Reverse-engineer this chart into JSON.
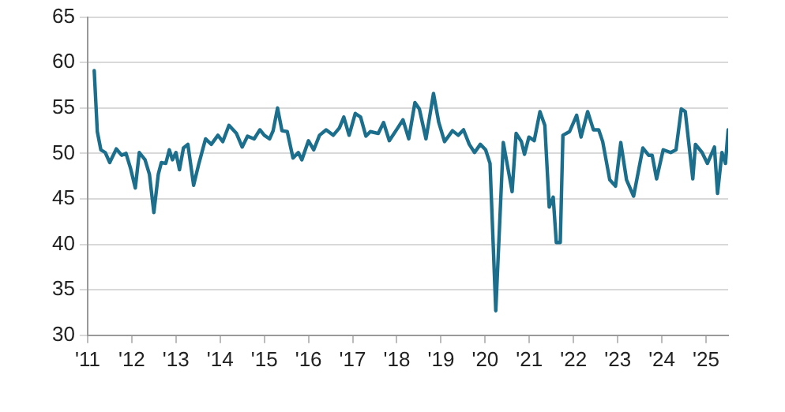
{
  "chart_data": {
    "type": "line",
    "color": "#1b6f8c",
    "grid": "y",
    "legend": false,
    "marker": "none",
    "line_style": "solid",
    "x": [
      2011.15,
      2011.22,
      2011.3,
      2011.4,
      2011.5,
      2011.65,
      2011.77,
      2011.87,
      2011.97,
      2012.08,
      2012.17,
      2012.3,
      2012.4,
      2012.5,
      2012.6,
      2012.67,
      2012.77,
      2012.85,
      2012.92,
      2013.0,
      2013.08,
      2013.17,
      2013.27,
      2013.4,
      2013.52,
      2013.67,
      2013.8,
      2013.95,
      2014.06,
      2014.2,
      2014.37,
      2014.5,
      2014.62,
      2014.77,
      2014.9,
      2015.0,
      2015.12,
      2015.2,
      2015.3,
      2015.4,
      2015.52,
      2015.65,
      2015.77,
      2015.85,
      2016.0,
      2016.12,
      2016.25,
      2016.4,
      2016.56,
      2016.7,
      2016.8,
      2016.92,
      2017.06,
      2017.18,
      2017.3,
      2017.4,
      2017.58,
      2017.7,
      2017.83,
      2018.02,
      2018.14,
      2018.27,
      2018.41,
      2018.51,
      2018.66,
      2018.83,
      2018.95,
      2019.08,
      2019.26,
      2019.39,
      2019.51,
      2019.64,
      2019.76,
      2019.89,
      2020.01,
      2020.11,
      2020.24,
      2020.41,
      2020.54,
      2020.61,
      2020.7,
      2020.82,
      2020.89,
      2020.99,
      2021.11,
      2021.24,
      2021.35,
      2021.45,
      2021.54,
      2021.61,
      2021.7,
      2021.76,
      2021.91,
      2022.07,
      2022.17,
      2022.32,
      2022.45,
      2022.57,
      2022.66,
      2022.82,
      2022.95,
      2023.07,
      2023.2,
      2023.36,
      2023.57,
      2023.7,
      2023.78,
      2023.88,
      2024.03,
      2024.2,
      2024.32,
      2024.44,
      2024.53,
      2024.7,
      2024.76,
      2024.91,
      2025.03,
      2025.19,
      2025.26,
      2025.36,
      2025.44,
      2025.5
    ],
    "values": [
      59.1,
      52.4,
      50.4,
      50.1,
      49.0,
      50.5,
      49.8,
      50.0,
      48.4,
      46.2,
      50.1,
      49.3,
      47.7,
      43.5,
      47.7,
      49.0,
      48.9,
      50.4,
      49.3,
      50.1,
      48.2,
      50.6,
      51.0,
      46.5,
      48.9,
      51.6,
      51.0,
      52.0,
      51.3,
      53.1,
      52.2,
      50.7,
      51.9,
      51.6,
      52.6,
      52.0,
      51.6,
      52.5,
      55.0,
      52.5,
      52.4,
      49.5,
      50.1,
      49.3,
      51.4,
      50.4,
      52.0,
      52.6,
      52.0,
      52.8,
      54.0,
      52.0,
      54.4,
      54.0,
      51.9,
      52.4,
      52.2,
      53.4,
      51.4,
      52.8,
      53.7,
      51.6,
      55.6,
      54.9,
      51.6,
      56.6,
      53.4,
      51.3,
      52.5,
      52.0,
      52.6,
      51.0,
      50.1,
      51.0,
      50.4,
      48.9,
      32.7,
      51.2,
      47.7,
      45.8,
      52.2,
      51.3,
      49.9,
      51.8,
      51.4,
      54.6,
      53.1,
      44.1,
      45.2,
      40.2,
      40.2,
      52.0,
      52.4,
      54.2,
      51.8,
      54.6,
      52.6,
      52.6,
      51.3,
      47.1,
      46.4,
      51.2,
      47.1,
      45.3,
      50.6,
      49.8,
      49.8,
      47.2,
      50.4,
      50.1,
      50.4,
      54.9,
      54.6,
      47.2,
      51.0,
      50.1,
      48.9,
      50.7,
      45.6,
      50.1,
      48.9,
      52.6
    ],
    "xlim": [
      2011,
      2025.5
    ],
    "xticks": [
      {
        "value": 2011,
        "label": "'11"
      },
      {
        "value": 2012,
        "label": "'12"
      },
      {
        "value": 2013,
        "label": "'13"
      },
      {
        "value": 2014,
        "label": "'14"
      },
      {
        "value": 2015,
        "label": "'15"
      },
      {
        "value": 2016,
        "label": "'16"
      },
      {
        "value": 2017,
        "label": "'17"
      },
      {
        "value": 2018,
        "label": "'18"
      },
      {
        "value": 2019,
        "label": "'19"
      },
      {
        "value": 2020,
        "label": "'20"
      },
      {
        "value": 2021,
        "label": "'21"
      },
      {
        "value": 2022,
        "label": "'22"
      },
      {
        "value": 2023,
        "label": "'23"
      },
      {
        "value": 2024,
        "label": "'24"
      },
      {
        "value": 2025,
        "label": "'25"
      }
    ],
    "ylim": [
      30,
      65
    ],
    "yticks": [
      30,
      35,
      40,
      45,
      50,
      55,
      60,
      65
    ]
  }
}
